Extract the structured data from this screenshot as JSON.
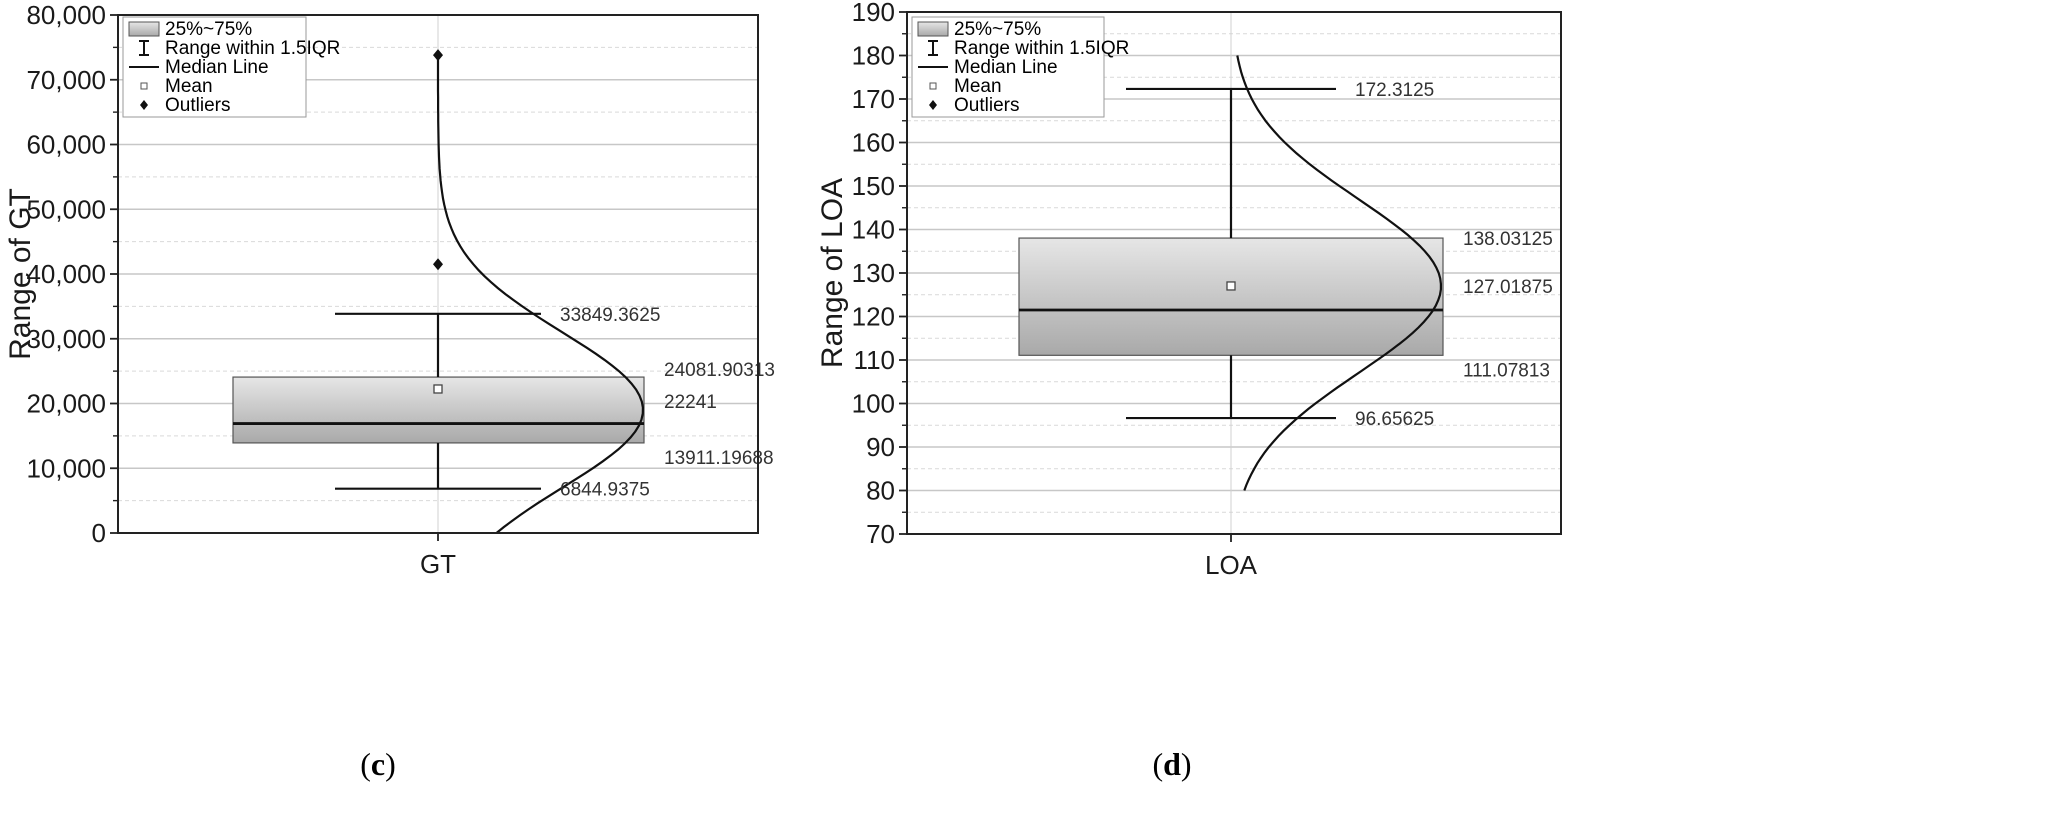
{
  "legend": {
    "items": [
      {
        "key": "box",
        "label": "25%~75%"
      },
      {
        "key": "range",
        "label": "Range within 1.5IQR"
      },
      {
        "key": "median",
        "label": "Median Line"
      },
      {
        "key": "mean",
        "label": "Mean"
      },
      {
        "key": "outliers",
        "label": "Outliers"
      }
    ]
  },
  "chart_data": [
    {
      "type": "box",
      "caption_pre": "(",
      "caption_letter": "c",
      "caption_post": ")",
      "xlabel": "GT",
      "ylabel": "Range of GT",
      "category": "GT",
      "ylim": [
        0,
        80000
      ],
      "yticks": [
        0,
        10000,
        20000,
        30000,
        40000,
        50000,
        60000,
        70000,
        80000
      ],
      "yticklabels": [
        "0",
        "10,000",
        "20,000",
        "30,000",
        "40,000",
        "50,000",
        "60,000",
        "70,000",
        "80,000"
      ],
      "grid": true,
      "legend_position": "top-left",
      "stats": {
        "q1": 13911.19688,
        "q3": 24081.90313,
        "median": 16900,
        "mean": 22241,
        "whisker_low": 6844.9375,
        "whisker_high": 33849.3625,
        "outliers": [
          41500,
          73800
        ]
      },
      "annotations": [
        {
          "value": 33849.3625,
          "label": "33849.3625"
        },
        {
          "value": 24081.90313,
          "label": "24081.90313"
        },
        {
          "value": 22241,
          "label": "22241"
        },
        {
          "value": 13911.19688,
          "label": "13911.19688"
        },
        {
          "value": 6844.9375,
          "label": "6844.9375"
        }
      ],
      "distribution_curve": {
        "center": 19000,
        "sd": 12000,
        "from": 0,
        "to": 73800
      }
    },
    {
      "type": "box",
      "caption_pre": "(",
      "caption_letter": "d",
      "caption_post": ")",
      "xlabel": "LOA",
      "ylabel": "Range of LOA",
      "category": "LOA",
      "ylim": [
        70,
        190
      ],
      "yticks": [
        70,
        80,
        90,
        100,
        110,
        120,
        130,
        140,
        150,
        160,
        170,
        180,
        190
      ],
      "yticklabels": [
        "70",
        "80",
        "90",
        "100",
        "110",
        "120",
        "130",
        "140",
        "150",
        "160",
        "170",
        "180",
        "190"
      ],
      "grid": true,
      "legend_position": "top-left",
      "stats": {
        "q1": 111.07813,
        "q3": 138.03125,
        "median": 121.5,
        "mean": 127.01875,
        "whisker_low": 96.65625,
        "whisker_high": 172.3125,
        "outliers": []
      },
      "annotations": [
        {
          "value": 172.3125,
          "label": "172.3125"
        },
        {
          "value": 138.03125,
          "label": "138.03125"
        },
        {
          "value": 127.01875,
          "label": "127.01875"
        },
        {
          "value": 111.07813,
          "label": "111.07813"
        },
        {
          "value": 96.65625,
          "label": "96.65625"
        }
      ],
      "distribution_curve": {
        "center": 127,
        "sd": 20,
        "from": 80,
        "to": 180
      }
    }
  ]
}
